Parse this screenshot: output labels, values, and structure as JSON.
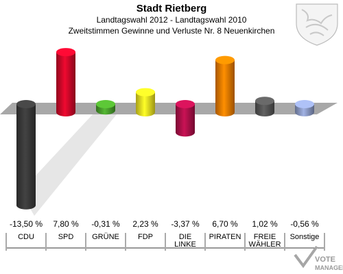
{
  "chart_data": {
    "type": "bar",
    "title": "Stadt Rietberg",
    "subtitle1": "Landtagswahl 2012 - Landtagswahl 2010",
    "subtitle2": "Zweitstimmen Gewinne und Verluste Nr. 8 Neuenkirchen",
    "categories": [
      "CDU",
      "SPD",
      "GRÜNE",
      "FDP",
      "DIE LINKE",
      "PIRATEN",
      "FREIE WÄHLER",
      "Sonstige"
    ],
    "category_lines": [
      [
        "CDU"
      ],
      [
        "SPD"
      ],
      [
        "GRÜNE"
      ],
      [
        "FDP"
      ],
      [
        "DIE",
        "LINKE"
      ],
      [
        "PIRATEN"
      ],
      [
        "FREIE",
        "WÄHLER"
      ],
      [
        "Sonstige"
      ]
    ],
    "values": [
      -13.5,
      7.8,
      -0.31,
      2.23,
      -3.37,
      6.7,
      1.02,
      -0.56
    ],
    "value_labels": [
      "-13,50 %",
      "7,80 %",
      "-0,31 %",
      "2,23 %",
      "-3,37 %",
      "6,70 %",
      "1,02 %",
      "-0,56 %"
    ],
    "colors": [
      "#3a3a3a",
      "#d1082a",
      "#4aa02c",
      "#f0e322",
      "#b0104a",
      "#f07c00",
      "#555555",
      "#8c9bc6"
    ],
    "ylim": [
      -14,
      8
    ]
  },
  "logo_text": "VOTE MANAGER"
}
